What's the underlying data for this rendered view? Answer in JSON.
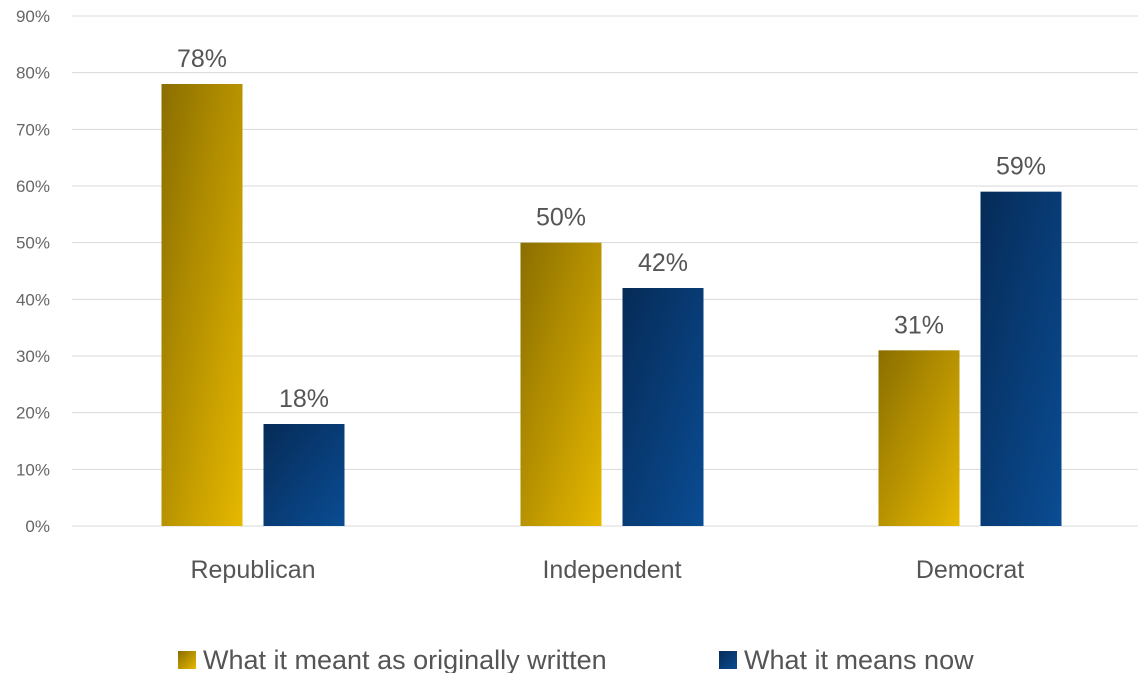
{
  "chart_data": {
    "type": "bar",
    "categories": [
      "Republican",
      "Independent",
      "Democrat"
    ],
    "series": [
      {
        "name": "What it meant as originally written",
        "values": [
          78,
          50,
          31
        ]
      },
      {
        "name": "What it means now",
        "values": [
          18,
          42,
          59
        ]
      }
    ],
    "data_labels": [
      [
        "78%",
        "50%",
        "31%"
      ],
      [
        "18%",
        "42%",
        "59%"
      ]
    ],
    "y_ticks": [
      "0%",
      "10%",
      "20%",
      "30%",
      "40%",
      "50%",
      "60%",
      "70%",
      "80%",
      "90%"
    ],
    "ylim": [
      0,
      90
    ],
    "grid": true,
    "legend_position": "bottom",
    "title": "",
    "xlabel": "",
    "ylabel": ""
  },
  "colors": {
    "series_1_dark": "#8a6e00",
    "series_1_light": "#e6b800",
    "series_2_dark": "#062b57",
    "series_2_light": "#0a4c93",
    "grid": "#d9d9d9"
  }
}
